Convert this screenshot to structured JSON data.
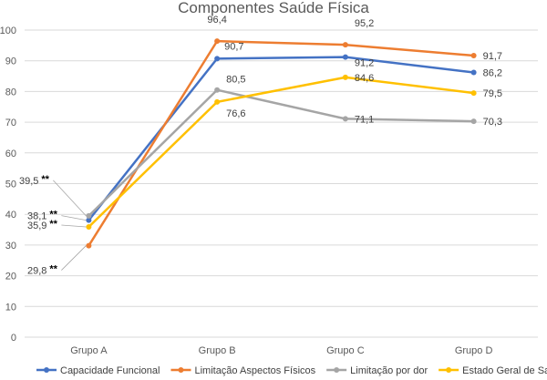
{
  "chart_data": {
    "type": "line",
    "title": "Componentes Saúde Física",
    "categories": [
      "Grupo A",
      "Grupo B",
      "Grupo C",
      "Grupo D"
    ],
    "ylim": [
      0,
      100
    ],
    "yticks": [
      "0",
      "10",
      "20",
      "30",
      "40",
      "50",
      "60",
      "70",
      "80",
      "90",
      "100"
    ],
    "grid": true,
    "legend_position": "bottom",
    "significance_marker": "**",
    "series": [
      {
        "name": "Capacidade Funcional",
        "color": "#4472C4",
        "values": [
          38.1,
          90.7,
          91.2,
          86.2
        ],
        "labels": [
          "38,1",
          "90,7",
          "91,2",
          "86,2"
        ]
      },
      {
        "name": "Limitação Aspectos Físicos",
        "color": "#ED7D31",
        "values": [
          29.8,
          96.4,
          95.2,
          91.7
        ],
        "labels": [
          "29,8",
          "96,4",
          "95,2",
          "91,7"
        ]
      },
      {
        "name": "Limitação por dor",
        "color": "#A5A5A5",
        "values": [
          39.5,
          80.5,
          71.1,
          70.3
        ],
        "labels": [
          "39,5",
          "80,5",
          "71,1",
          "70,3"
        ]
      },
      {
        "name": "Estado Geral de Saúde",
        "color": "#FFC000",
        "values": [
          35.9,
          76.6,
          84.6,
          79.5
        ],
        "labels": [
          "35,9",
          "76,6",
          "84,6",
          "79,5"
        ]
      }
    ]
  }
}
